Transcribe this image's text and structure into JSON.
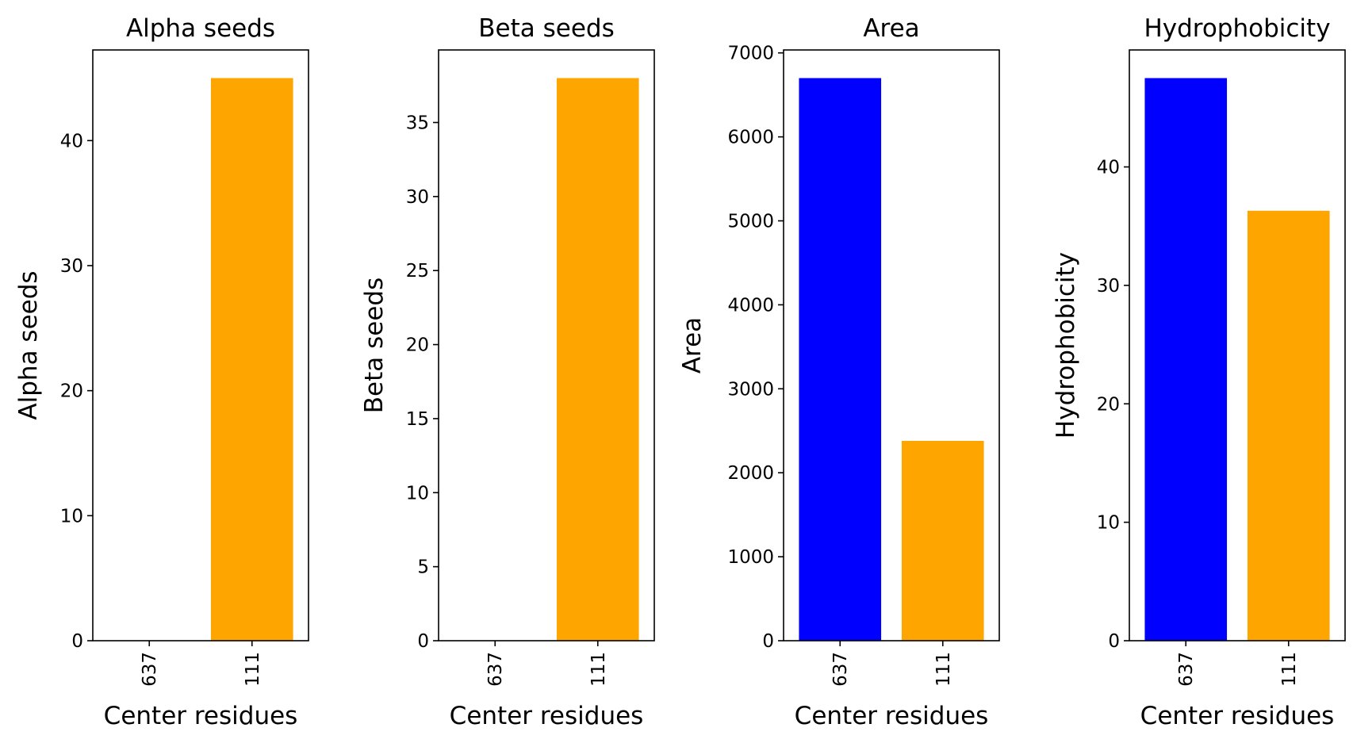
{
  "chart_data": [
    {
      "type": "bar",
      "title": "Alpha seeds",
      "xlabel": "Center residues",
      "ylabel": "Alpha seeds",
      "categories": [
        "637",
        "111"
      ],
      "values": [
        0,
        45
      ],
      "colors": [
        "#0000ff",
        "#ffa500"
      ],
      "ylim": [
        0,
        47.25
      ],
      "yticks": [
        0,
        10,
        20,
        30,
        40
      ],
      "grid": false
    },
    {
      "type": "bar",
      "title": "Beta seeds",
      "xlabel": "Center residues",
      "ylabel": "Beta seeds",
      "categories": [
        "637",
        "111"
      ],
      "values": [
        0,
        38
      ],
      "colors": [
        "#0000ff",
        "#ffa500"
      ],
      "ylim": [
        0,
        39.9
      ],
      "yticks": [
        0,
        5,
        10,
        15,
        20,
        25,
        30,
        35
      ],
      "grid": false
    },
    {
      "type": "bar",
      "title": "Area",
      "xlabel": "Center residues",
      "ylabel": "Area",
      "categories": [
        "637",
        "111"
      ],
      "values": [
        6700,
        2380
      ],
      "colors": [
        "#0000ff",
        "#ffa500"
      ],
      "ylim": [
        0,
        7035
      ],
      "yticks": [
        0,
        1000,
        2000,
        3000,
        4000,
        5000,
        6000,
        7000
      ],
      "grid": false
    },
    {
      "type": "bar",
      "title": "Hydrophobicity",
      "xlabel": "Center residues",
      "ylabel": "Hydrophobicity",
      "categories": [
        "637",
        "111"
      ],
      "values": [
        47.5,
        36.3
      ],
      "colors": [
        "#0000ff",
        "#ffa500"
      ],
      "ylim": [
        0,
        49.875
      ],
      "yticks": [
        0,
        10,
        20,
        30,
        40
      ],
      "grid": false
    }
  ]
}
